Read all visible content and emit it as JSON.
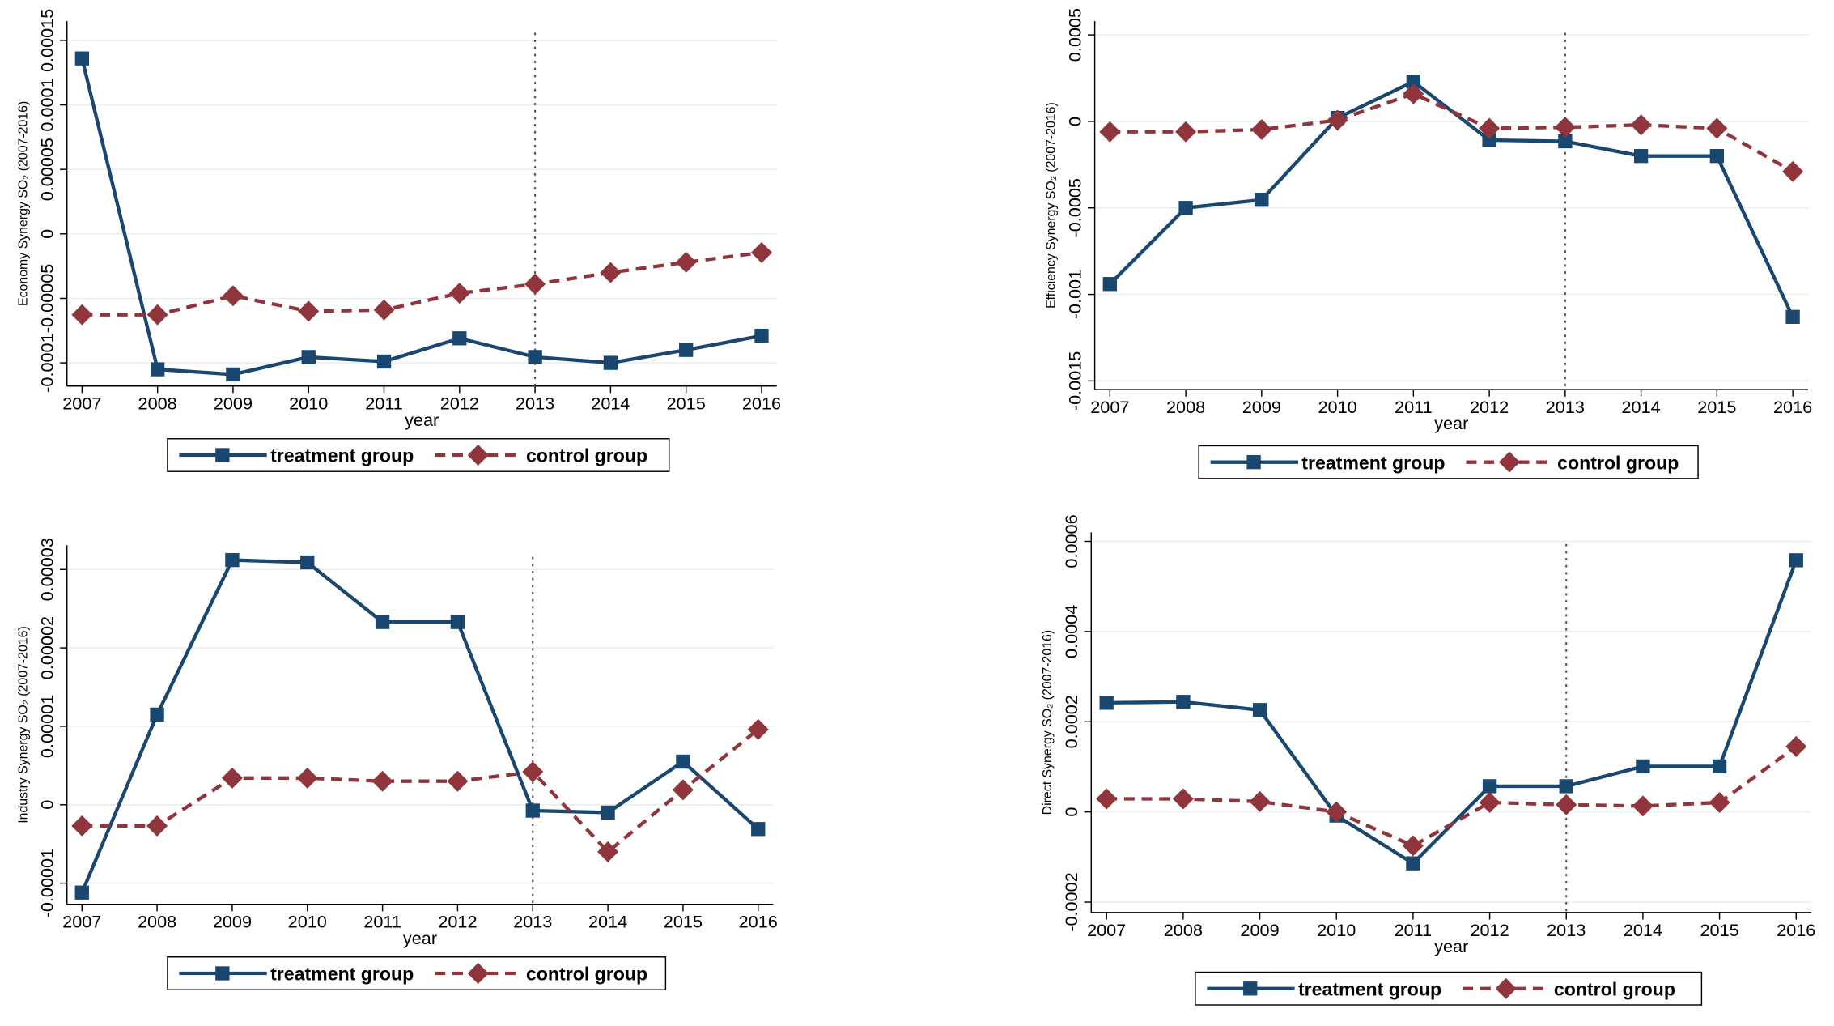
{
  "chart_data": [
    {
      "type": "line",
      "y_label": "Economy Synergy SO₂ (2007-2016)",
      "x_label": "year",
      "x": [
        2007,
        2008,
        2009,
        2010,
        2011,
        2012,
        2013,
        2014,
        2015,
        2016
      ],
      "xlim": [
        2006.8,
        2016.2
      ],
      "xticks": [
        2007,
        2008,
        2009,
        2010,
        2011,
        2012,
        2013,
        2014,
        2015,
        2016
      ],
      "ylim": [
        -0.000118,
        0.000165
      ],
      "yticks": [
        -0.0001,
        -5e-05,
        0,
        5e-05,
        0.0001,
        0.00015
      ],
      "grid": true,
      "vline": 2013,
      "series": [
        {
          "name": "treatment group",
          "color": "#1a476f",
          "marker": "square",
          "dash": false,
          "values": [
            0.000136,
            -0.000105,
            -0.000109,
            -9.55e-05,
            -9.9e-05,
            -8.1e-05,
            -9.55e-05,
            -0.0001,
            -9e-05,
            -7.9e-05
          ]
        },
        {
          "name": "control group",
          "color": "#90353b",
          "marker": "diamond",
          "dash": true,
          "values": [
            -6.27e-05,
            -6.27e-05,
            -4.8e-05,
            -6e-05,
            -5.9e-05,
            -4.6e-05,
            -3.9e-05,
            -3e-05,
            -2.2e-05,
            -1.45e-05
          ]
        }
      ]
    },
    {
      "type": "line",
      "y_label": "Efficiency Synergy SO₂ (2007-2016)",
      "x_label": "year",
      "x": [
        2007,
        2008,
        2009,
        2010,
        2011,
        2012,
        2013,
        2014,
        2015,
        2016
      ],
      "xlim": [
        2006.8,
        2016.2
      ],
      "xticks": [
        2007,
        2008,
        2009,
        2010,
        2011,
        2012,
        2013,
        2014,
        2015,
        2016
      ],
      "ylim": [
        -0.00155,
        0.00058
      ],
      "yticks": [
        -0.0015,
        -0.001,
        -0.0005,
        0,
        0.0005
      ],
      "grid": true,
      "vline": 2013,
      "series": [
        {
          "name": "treatment group",
          "color": "#1a476f",
          "marker": "square",
          "dash": false,
          "values": [
            -0.00094,
            -0.0005,
            -0.000453,
            2e-05,
            0.00023,
            -0.000108,
            -0.000115,
            -0.0002,
            -0.0002,
            -0.00113
          ]
        },
        {
          "name": "control group",
          "color": "#90353b",
          "marker": "diamond",
          "dash": true,
          "values": [
            -6e-05,
            -6e-05,
            -4.7e-05,
            7e-06,
            0.00016,
            -4e-05,
            -3.4e-05,
            -2e-05,
            -4e-05,
            -0.00029
          ]
        }
      ]
    },
    {
      "type": "line",
      "y_label": "Industry Synergy SO₂ (2007-2016)",
      "x_label": "year",
      "x": [
        2007,
        2008,
        2009,
        2010,
        2011,
        2012,
        2013,
        2014,
        2015,
        2016
      ],
      "xlim": [
        2006.8,
        2016.2
      ],
      "xticks": [
        2007,
        2008,
        2009,
        2010,
        2011,
        2012,
        2013,
        2014,
        2015,
        2016
      ],
      "ylim": [
        -1.27e-05,
        3.31e-05
      ],
      "yticks": [
        -1e-05,
        0,
        1e-05,
        2e-05,
        3e-05
      ],
      "grid": true,
      "vline": 2013,
      "series": [
        {
          "name": "treatment group",
          "color": "#1a476f",
          "marker": "square",
          "dash": false,
          "values": [
            -1.12e-05,
            1.15e-05,
            3.12e-05,
            3.09e-05,
            2.33e-05,
            2.33e-05,
            -7.5e-07,
            -1e-06,
            5.5e-06,
            -3.1e-06
          ]
        },
        {
          "name": "control group",
          "color": "#90353b",
          "marker": "diamond",
          "dash": true,
          "values": [
            -2.7e-06,
            -2.7e-06,
            3.4e-06,
            3.4e-06,
            3e-06,
            3e-06,
            4.2e-06,
            -6e-06,
            1.9e-06,
            9.6e-06
          ]
        }
      ]
    },
    {
      "type": "line",
      "y_label": "Direct Synergy SO₂ (2007-2016)",
      "x_label": "year",
      "x": [
        2007,
        2008,
        2009,
        2010,
        2011,
        2012,
        2013,
        2014,
        2015,
        2016
      ],
      "xlim": [
        2006.8,
        2016.2
      ],
      "xticks": [
        2007,
        2008,
        2009,
        2010,
        2011,
        2012,
        2013,
        2014,
        2015,
        2016
      ],
      "ylim": [
        -0.000223,
        0.00062
      ],
      "yticks": [
        -0.0002,
        0,
        0.0002,
        0.0004,
        0.0006
      ],
      "grid": true,
      "vline": 2013,
      "series": [
        {
          "name": "treatment group",
          "color": "#1a476f",
          "marker": "square",
          "dash": false,
          "values": [
            0.000242,
            0.000244,
            0.000226,
            -8e-06,
            -0.000114,
            5.7e-05,
            5.7e-05,
            0.000101,
            0.000101,
            0.000558
          ]
        },
        {
          "name": "control group",
          "color": "#90353b",
          "marker": "diamond",
          "dash": true,
          "values": [
            2.9e-05,
            2.9e-05,
            2.3e-05,
            0,
            -7.5e-05,
            2.1e-05,
            1.6e-05,
            1.3e-05,
            2.1e-05,
            0.000145
          ]
        }
      ]
    }
  ]
}
